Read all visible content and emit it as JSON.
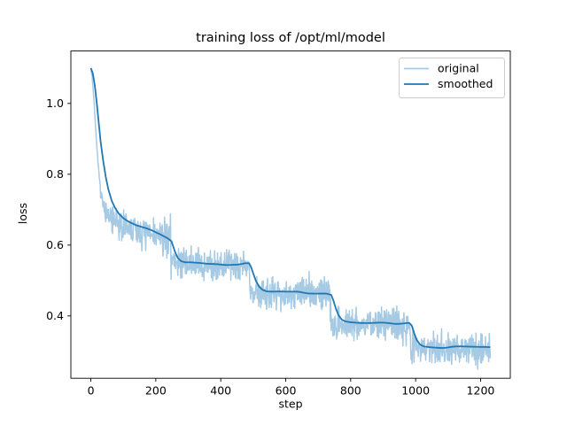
{
  "chart_data": {
    "type": "line",
    "title": "training loss of /opt/ml/model",
    "xlabel": "step",
    "ylabel": "loss",
    "xlim": [
      -61.5,
      1291.5
    ],
    "ylim": [
      0.224,
      1.148
    ],
    "grid": false,
    "legend_position": "upper right",
    "xticks": [
      {
        "value": 0,
        "label": "0"
      },
      {
        "value": 200,
        "label": "200"
      },
      {
        "value": 400,
        "label": "400"
      },
      {
        "value": 600,
        "label": "600"
      },
      {
        "value": 800,
        "label": "800"
      },
      {
        "value": 1000,
        "label": "1000"
      },
      {
        "value": 1200,
        "label": "1200"
      }
    ],
    "yticks": [
      {
        "value": 0.4,
        "label": "0.4"
      },
      {
        "value": 0.6,
        "label": "0.6"
      },
      {
        "value": 0.8,
        "label": "0.8"
      },
      {
        "value": 1.0,
        "label": "1.0"
      }
    ],
    "legend": [
      {
        "label": "original",
        "color": "#a6cae3"
      },
      {
        "label": "smoothed",
        "color": "#1f77b4"
      }
    ],
    "series": [
      {
        "name": "original",
        "color": "#a6cae3",
        "line_width": 1.5,
        "noise": {
          "mode": "jitter",
          "amp": 0.054,
          "seed": 7,
          "step": 1,
          "ramp": [
            {
              "until": 30,
              "scale": 0.15
            },
            {
              "until": 60,
              "scale": 0.6
            }
          ]
        },
        "keypoints": [
          [
            0,
            1.097
          ],
          [
            4,
            1.075
          ],
          [
            8,
            1.03
          ],
          [
            12,
            0.972
          ],
          [
            16,
            0.912
          ],
          [
            20,
            0.856
          ],
          [
            25,
            0.8
          ],
          [
            30,
            0.756
          ],
          [
            36,
            0.72
          ],
          [
            43,
            0.697
          ],
          [
            52,
            0.682
          ],
          [
            62,
            0.672
          ],
          [
            75,
            0.664
          ],
          [
            95,
            0.655
          ],
          [
            120,
            0.647
          ],
          [
            150,
            0.639
          ],
          [
            180,
            0.63
          ],
          [
            210,
            0.622
          ],
          [
            240,
            0.613
          ],
          [
            243,
            0.64
          ],
          [
            245,
            0.685
          ],
          [
            246,
            0.62
          ],
          [
            247,
            0.565
          ],
          [
            250,
            0.553
          ],
          [
            285,
            0.55
          ],
          [
            325,
            0.547
          ],
          [
            365,
            0.544
          ],
          [
            405,
            0.543
          ],
          [
            445,
            0.543
          ],
          [
            472,
            0.545
          ],
          [
            486,
            0.546
          ],
          [
            488,
            0.52
          ],
          [
            490,
            0.47
          ],
          [
            493,
            0.466
          ],
          [
            530,
            0.465
          ],
          [
            580,
            0.464
          ],
          [
            640,
            0.464
          ],
          [
            700,
            0.463
          ],
          [
            736,
            0.463
          ],
          [
            738,
            0.43
          ],
          [
            740,
            0.385
          ],
          [
            743,
            0.38
          ],
          [
            790,
            0.379
          ],
          [
            850,
            0.378
          ],
          [
            910,
            0.378
          ],
          [
            965,
            0.377
          ],
          [
            982,
            0.377
          ],
          [
            984,
            0.34
          ],
          [
            986,
            0.315
          ],
          [
            990,
            0.311
          ],
          [
            1030,
            0.309
          ],
          [
            1090,
            0.308
          ],
          [
            1150,
            0.308
          ],
          [
            1200,
            0.307
          ],
          [
            1230,
            0.307
          ]
        ]
      },
      {
        "name": "smoothed",
        "color": "#1f77b4",
        "line_width": 1.8,
        "noise": {
          "mode": "wiggle",
          "amp": 0.0045,
          "seed": 11,
          "step": 2,
          "wavelength": 45,
          "ramp": [
            {
              "until": 70,
              "scale": 0.0
            }
          ]
        },
        "keypoints": [
          [
            0,
            1.1
          ],
          [
            6,
            1.085
          ],
          [
            12,
            1.052
          ],
          [
            18,
            1.003
          ],
          [
            24,
            0.948
          ],
          [
            30,
            0.893
          ],
          [
            38,
            0.838
          ],
          [
            46,
            0.792
          ],
          [
            54,
            0.757
          ],
          [
            64,
            0.726
          ],
          [
            74,
            0.705
          ],
          [
            86,
            0.688
          ],
          [
            100,
            0.675
          ],
          [
            115,
            0.666
          ],
          [
            135,
            0.657
          ],
          [
            155,
            0.65
          ],
          [
            175,
            0.643
          ],
          [
            195,
            0.636
          ],
          [
            215,
            0.629
          ],
          [
            235,
            0.62
          ],
          [
            248,
            0.613
          ],
          [
            254,
            0.598
          ],
          [
            260,
            0.582
          ],
          [
            268,
            0.567
          ],
          [
            278,
            0.558
          ],
          [
            292,
            0.553
          ],
          [
            310,
            0.551
          ],
          [
            335,
            0.549
          ],
          [
            360,
            0.546
          ],
          [
            390,
            0.546
          ],
          [
            420,
            0.544
          ],
          [
            450,
            0.545
          ],
          [
            475,
            0.547
          ],
          [
            487,
            0.546
          ],
          [
            493,
            0.536
          ],
          [
            500,
            0.517
          ],
          [
            508,
            0.497
          ],
          [
            517,
            0.483
          ],
          [
            528,
            0.474
          ],
          [
            542,
            0.47
          ],
          [
            565,
            0.468
          ],
          [
            600,
            0.467
          ],
          [
            640,
            0.467
          ],
          [
            690,
            0.466
          ],
          [
            725,
            0.466
          ],
          [
            740,
            0.462
          ],
          [
            746,
            0.448
          ],
          [
            754,
            0.424
          ],
          [
            762,
            0.405
          ],
          [
            772,
            0.392
          ],
          [
            784,
            0.386
          ],
          [
            800,
            0.383
          ],
          [
            830,
            0.381
          ],
          [
            870,
            0.381
          ],
          [
            910,
            0.38
          ],
          [
            950,
            0.381
          ],
          [
            980,
            0.38
          ],
          [
            988,
            0.372
          ],
          [
            995,
            0.352
          ],
          [
            1003,
            0.332
          ],
          [
            1013,
            0.319
          ],
          [
            1025,
            0.313
          ],
          [
            1045,
            0.311
          ],
          [
            1090,
            0.31
          ],
          [
            1140,
            0.311
          ],
          [
            1190,
            0.31
          ],
          [
            1230,
            0.31
          ]
        ]
      }
    ],
    "axis_color": "#000000",
    "background_color": "#ffffff"
  }
}
